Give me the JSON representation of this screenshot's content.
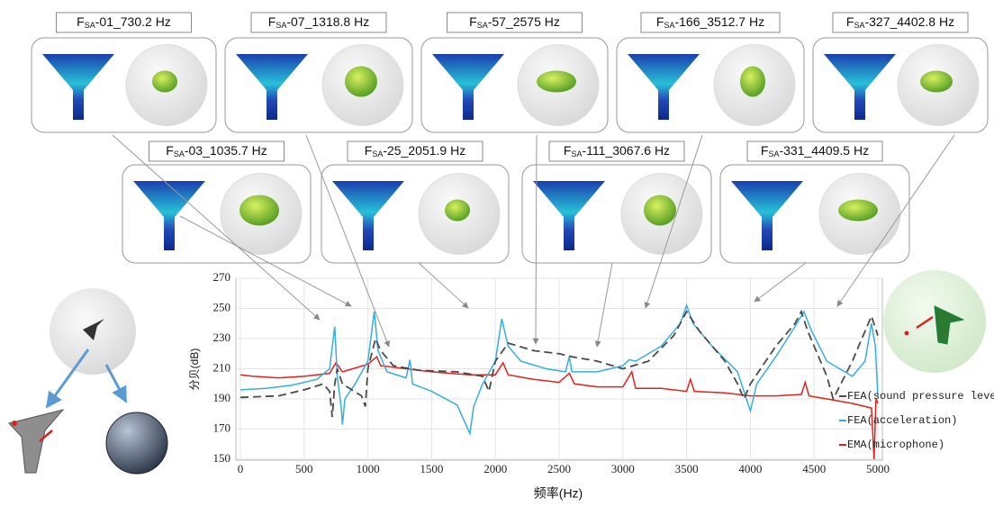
{
  "chart_data": {
    "type": "line",
    "xlabel": "频率(Hz)",
    "ylabel": "分贝(dB)",
    "xlim": [
      0,
      5000
    ],
    "ylim": [
      150,
      270
    ],
    "xticks": [
      0,
      500,
      1000,
      1500,
      2000,
      2500,
      3000,
      3500,
      4000,
      4500,
      5000
    ],
    "yticks": [
      150,
      170,
      190,
      210,
      230,
      250,
      270
    ],
    "grid": true,
    "legend": "right",
    "modes": [
      {
        "symbol": "F",
        "subscript": "SA",
        "suffix": "-01_730.2 Hz"
      },
      {
        "symbol": "F",
        "subscript": "SA",
        "suffix": "-07_1318.8 Hz"
      },
      {
        "symbol": "F",
        "subscript": "SA",
        "suffix": "-57_2575 Hz"
      },
      {
        "symbol": "F",
        "subscript": "SA",
        "suffix": "-166_3512.7 Hz"
      },
      {
        "symbol": "F",
        "subscript": "SA",
        "suffix": "-327_4402.8 Hz"
      },
      {
        "symbol": "F",
        "subscript": "SA",
        "suffix": "-03_1035.7 Hz"
      },
      {
        "symbol": "F",
        "subscript": "SA",
        "suffix": "-25_2051.9 Hz"
      },
      {
        "symbol": "F",
        "subscript": "SA",
        "suffix": "-111_3067.6 Hz"
      },
      {
        "symbol": "F",
        "subscript": "SA",
        "suffix": "-331_4409.5 Hz"
      }
    ],
    "series": [
      {
        "name": "FEA(sound pressure level)",
        "color": "#4a4a4a",
        "dashed": true,
        "x": [
          0,
          300,
          500,
          650,
          700,
          720,
          740,
          760,
          800,
          950,
          980,
          1000,
          1060,
          1100,
          1200,
          1400,
          1700,
          1900,
          1950,
          2000,
          2100,
          2300,
          2500,
          2600,
          2800,
          3000,
          3200,
          3400,
          3500,
          3600,
          3800,
          3900,
          3950,
          4000,
          4200,
          4350,
          4400,
          4450,
          4600,
          4650,
          4800,
          4950,
          5000
        ],
        "values": [
          191,
          192,
          196,
          200,
          195,
          178,
          200,
          210,
          200,
          192,
          185,
          210,
          230,
          222,
          212,
          209,
          208,
          205,
          195,
          215,
          227,
          222,
          220,
          218,
          215,
          210,
          215,
          232,
          248,
          235,
          215,
          200,
          190,
          200,
          225,
          240,
          248,
          235,
          205,
          190,
          215,
          245,
          232
        ]
      },
      {
        "name": "FEA(acceleration)",
        "color": "#35aee0",
        "dashed": false,
        "x": [
          0,
          200,
          400,
          600,
          700,
          740,
          760,
          790,
          800,
          820,
          900,
          1000,
          1050,
          1080,
          1150,
          1300,
          1330,
          1350,
          1500,
          1700,
          1800,
          1830,
          1900,
          2000,
          2050,
          2100,
          2200,
          2400,
          2550,
          2580,
          2600,
          2800,
          3000,
          3050,
          3100,
          3300,
          3450,
          3500,
          3550,
          3700,
          3900,
          4000,
          4050,
          4200,
          4350,
          4420,
          4480,
          4600,
          4800,
          4900,
          4950,
          4980,
          5000
        ],
        "values": [
          196,
          197,
          199,
          203,
          210,
          238,
          205,
          185,
          173,
          190,
          200,
          215,
          248,
          222,
          208,
          204,
          216,
          200,
          195,
          186,
          167,
          185,
          200,
          215,
          243,
          225,
          215,
          210,
          208,
          218,
          208,
          208,
          212,
          216,
          215,
          225,
          240,
          252,
          240,
          225,
          208,
          182,
          200,
          218,
          238,
          248,
          235,
          215,
          205,
          215,
          240,
          225,
          192
        ]
      },
      {
        "name": "EMA(microphone)",
        "color": "#e3201b",
        "dashed": false,
        "x": [
          0,
          100,
          300,
          500,
          700,
          750,
          800,
          1000,
          1070,
          1100,
          1300,
          1500,
          1800,
          2000,
          2060,
          2100,
          2300,
          2500,
          2580,
          2620,
          2800,
          3000,
          3070,
          3100,
          3300,
          3500,
          3530,
          3560,
          3800,
          4000,
          4200,
          4400,
          4430,
          4460,
          4600,
          4800,
          4950,
          4970,
          4985,
          5000
        ],
        "values": [
          206,
          205,
          204,
          205,
          207,
          214,
          208,
          213,
          218,
          212,
          210,
          208,
          206,
          206,
          214,
          206,
          203,
          201,
          207,
          200,
          198,
          198,
          208,
          197,
          197,
          195,
          203,
          195,
          194,
          192,
          192,
          193,
          201,
          192,
          190,
          187,
          184,
          150,
          190,
          187
        ]
      }
    ]
  }
}
